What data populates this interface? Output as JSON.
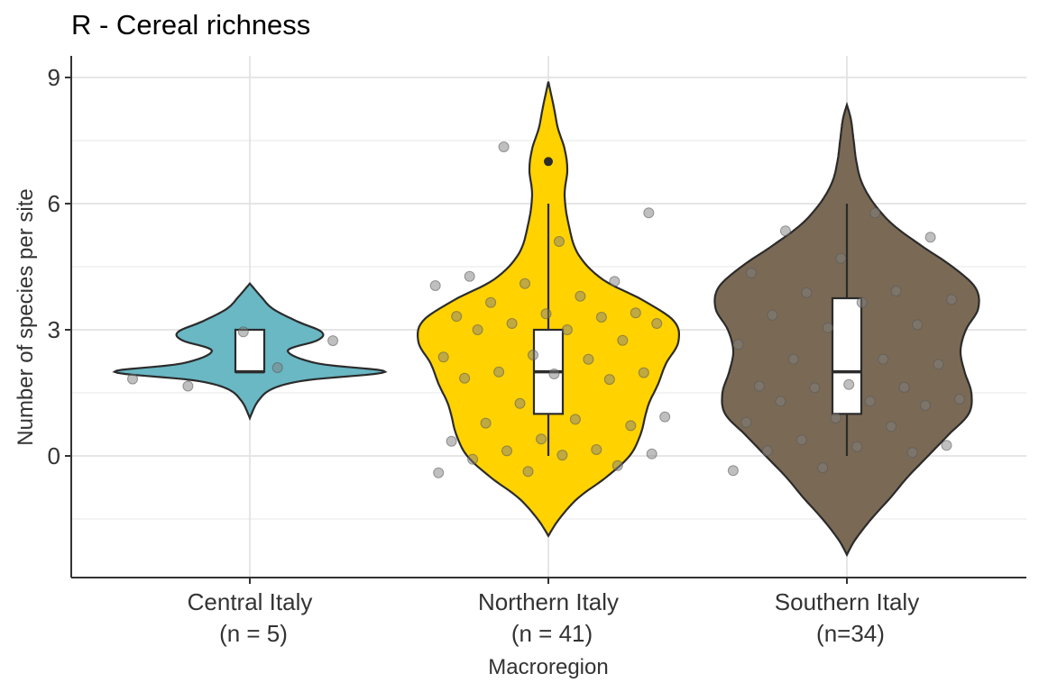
{
  "chart_data": {
    "type": "violin",
    "title": "R - Cereal richness",
    "xlabel": "Macroregion",
    "ylabel": "Number of species per site",
    "ylim": [
      -1.9,
      9.4
    ],
    "yticks": [
      0,
      3,
      6,
      9
    ],
    "grid": "major and minor, both axes",
    "legend": "none",
    "groups": [
      {
        "label_line1": "Central Italy",
        "label_line2": "(n = 5)",
        "color": "#69b8c4",
        "box": {
          "lower": 2,
          "q1": 2,
          "median": 2,
          "q3": 3,
          "upper": 3
        },
        "outliers": [],
        "violin": {
          "ymin": 0.9,
          "ymax": 4.1,
          "profile": [
            [
              0.9,
              0.0
            ],
            [
              1.3,
              0.06
            ],
            [
              1.6,
              0.17
            ],
            [
              1.8,
              0.42
            ],
            [
              2.0,
              1.0
            ],
            [
              2.2,
              0.5
            ],
            [
              2.5,
              0.28
            ],
            [
              2.75,
              0.5
            ],
            [
              2.95,
              0.53
            ],
            [
              3.2,
              0.35
            ],
            [
              3.5,
              0.17
            ],
            [
              3.8,
              0.08
            ],
            [
              4.1,
              0.0
            ]
          ]
        },
        "points": [
          1.83,
          2.1,
          1.66,
          2.74,
          2.95
        ]
      },
      {
        "label_line1": "Northern Italy",
        "label_line2": "(n = 41)",
        "color": "#ffd200",
        "box": {
          "lower": 0,
          "q1": 1,
          "median": 2,
          "q3": 3,
          "upper": 6
        },
        "outliers": [
          7
        ],
        "violin": {
          "ymin": -1.9,
          "ymax": 8.9,
          "profile": [
            [
              -1.9,
              0.0
            ],
            [
              -1.5,
              0.08
            ],
            [
              -1.0,
              0.22
            ],
            [
              -0.5,
              0.43
            ],
            [
              0.0,
              0.6
            ],
            [
              0.5,
              0.68
            ],
            [
              1.0,
              0.72
            ],
            [
              1.3,
              0.75
            ],
            [
              1.7,
              0.81
            ],
            [
              2.2,
              0.87
            ],
            [
              2.7,
              0.96
            ],
            [
              3.2,
              0.93
            ],
            [
              3.7,
              0.7
            ],
            [
              4.2,
              0.4
            ],
            [
              4.8,
              0.22
            ],
            [
              5.5,
              0.15
            ],
            [
              6.2,
              0.12
            ],
            [
              6.8,
              0.14
            ],
            [
              7.3,
              0.12
            ],
            [
              7.8,
              0.07
            ],
            [
              8.3,
              0.04
            ],
            [
              8.9,
              0.0
            ]
          ]
        },
        "points": [
          7.35,
          5.78,
          5.1,
          4.27,
          4.15,
          4.1,
          4.05,
          3.8,
          3.65,
          3.4,
          3.38,
          3.32,
          3.3,
          3.15,
          3.15,
          3.0,
          3.0,
          2.75,
          2.4,
          2.35,
          2.3,
          2.0,
          1.98,
          1.95,
          1.85,
          1.82,
          1.25,
          0.93,
          0.87,
          0.78,
          0.72,
          0.4,
          0.35,
          0.15,
          0.12,
          0.05,
          0.02,
          -0.08,
          -0.23,
          -0.37,
          -0.4
        ]
      },
      {
        "label_line1": "Southern Italy",
        "label_line2": "(n=34)",
        "color": "#7a6a55",
        "box": {
          "lower": 0,
          "q1": 1,
          "median": 2,
          "q3": 3.75,
          "upper": 6
        },
        "outliers": [],
        "violin": {
          "ymin": -2.35,
          "ymax": 8.35,
          "profile": [
            [
              -2.35,
              0.0
            ],
            [
              -2.0,
              0.06
            ],
            [
              -1.5,
              0.18
            ],
            [
              -1.0,
              0.32
            ],
            [
              -0.5,
              0.45
            ],
            [
              0.0,
              0.6
            ],
            [
              0.5,
              0.75
            ],
            [
              1.0,
              0.9
            ],
            [
              1.5,
              0.92
            ],
            [
              2.0,
              0.87
            ],
            [
              2.5,
              0.84
            ],
            [
              3.0,
              0.88
            ],
            [
              3.5,
              0.97
            ],
            [
              4.0,
              0.95
            ],
            [
              4.5,
              0.78
            ],
            [
              5.0,
              0.55
            ],
            [
              5.5,
              0.34
            ],
            [
              6.0,
              0.2
            ],
            [
              6.5,
              0.11
            ],
            [
              7.0,
              0.07
            ],
            [
              7.5,
              0.05
            ],
            [
              8.0,
              0.03
            ],
            [
              8.35,
              0.0
            ]
          ]
        },
        "points": [
          5.78,
          5.35,
          5.2,
          4.7,
          4.35,
          3.92,
          3.88,
          3.72,
          3.65,
          3.35,
          3.12,
          3.05,
          2.65,
          2.3,
          2.3,
          2.18,
          1.7,
          1.66,
          1.63,
          1.62,
          1.35,
          1.3,
          1.3,
          1.2,
          0.9,
          0.8,
          0.7,
          0.38,
          0.25,
          0.22,
          0.12,
          0.08,
          -0.28,
          -0.35
        ]
      }
    ]
  }
}
